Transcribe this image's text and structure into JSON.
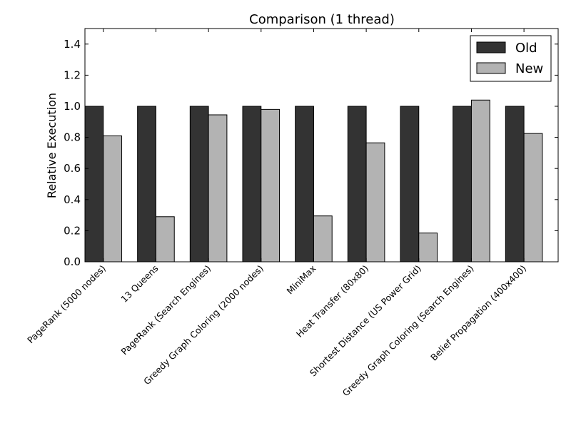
{
  "chart_data": {
    "type": "bar",
    "title": "Comparison (1 thread)",
    "xlabel": "",
    "ylabel": "Relative Execution",
    "ylim": [
      0,
      1.5
    ],
    "yticks": [
      "0.0",
      "0.2",
      "0.4",
      "0.6",
      "0.8",
      "1.0",
      "1.2",
      "1.4"
    ],
    "ytick_values": [
      0,
      0.2,
      0.4,
      0.6,
      0.8,
      1.0,
      1.2,
      1.4
    ],
    "grid": false,
    "legend_position": "top-right",
    "categories": [
      "PageRank (5000 nodes)",
      "13 Queens",
      "PageRank (Search Engines)",
      "Greedy Graph Coloring (2000 nodes)",
      "MiniMax",
      "Heat Transfer (80x80)",
      "Shortest Distance (US Power Grid)",
      "Greedy Graph Coloring (Search Engines)",
      "Belief Propagation (400x400)"
    ],
    "series": [
      {
        "name": "Old",
        "color": "#333333",
        "values": [
          1.0,
          1.0,
          1.0,
          1.0,
          1.0,
          1.0,
          1.0,
          1.0,
          1.0
        ]
      },
      {
        "name": "New",
        "color": "#b3b3b3",
        "values": [
          0.81,
          0.29,
          0.945,
          0.98,
          0.295,
          0.765,
          0.185,
          1.04,
          0.825
        ]
      }
    ]
  }
}
